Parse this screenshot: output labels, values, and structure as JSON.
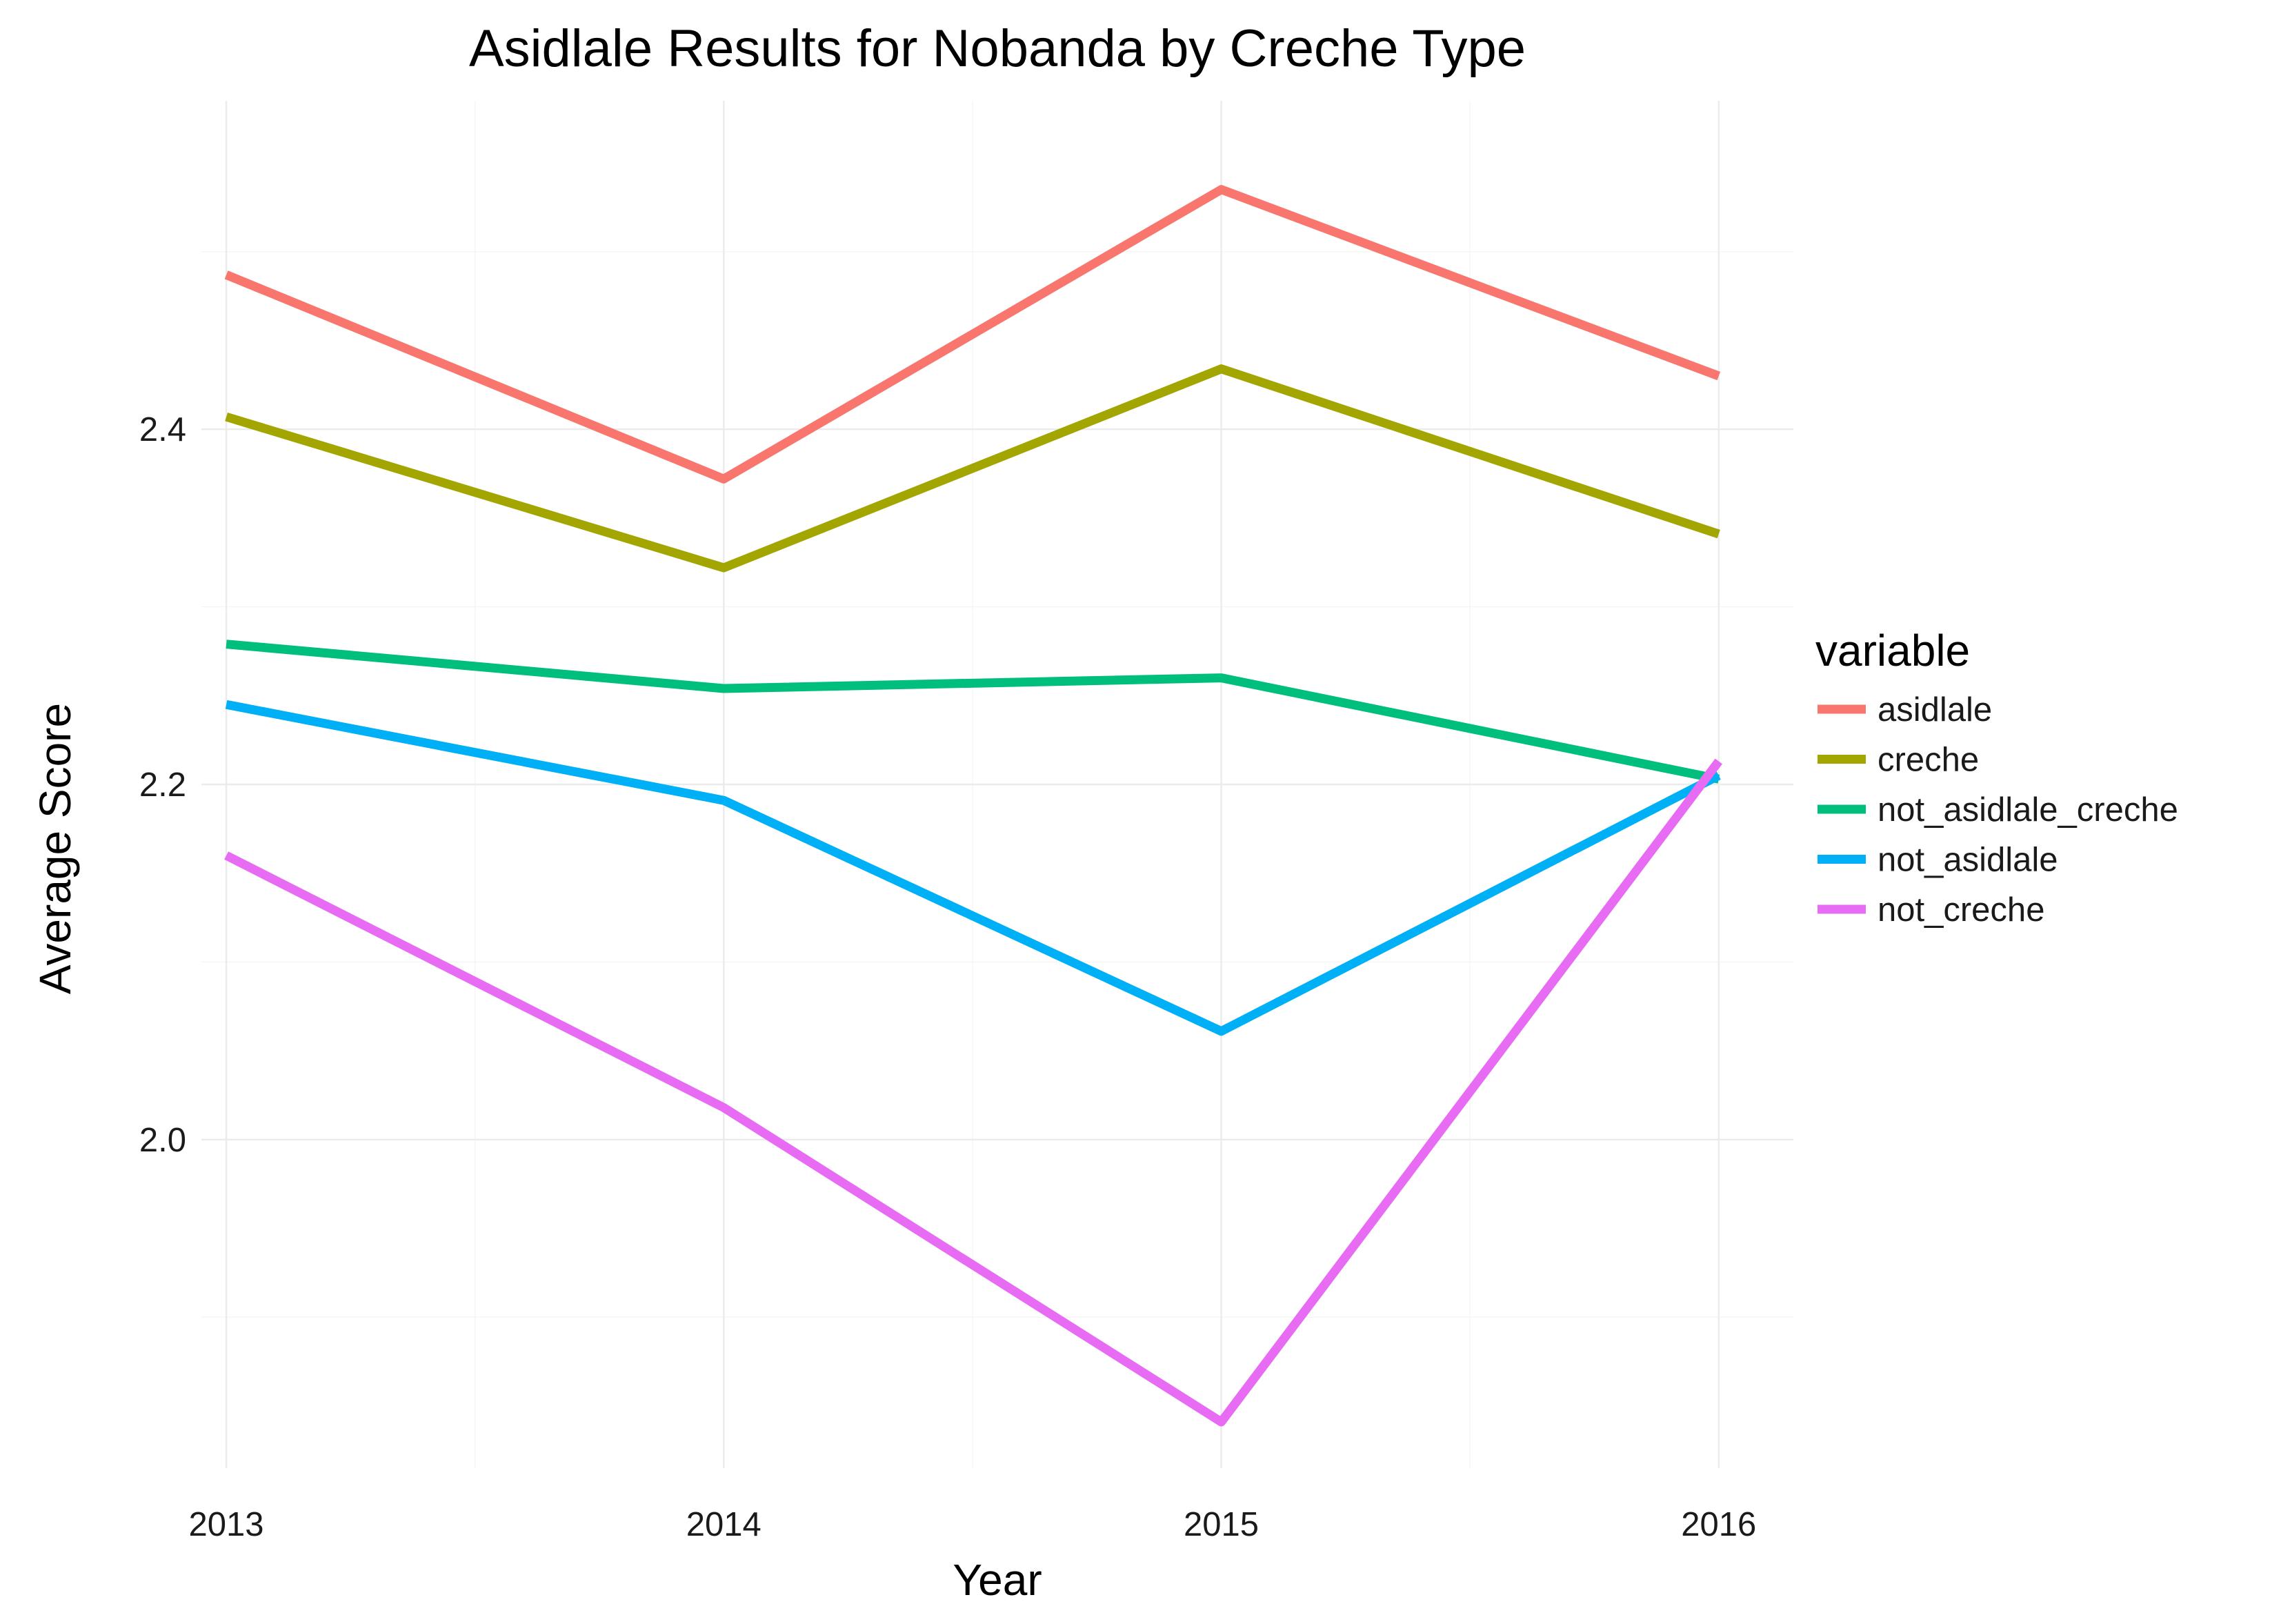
{
  "chart_data": {
    "type": "line",
    "title": "Asidlale Results for Nobanda by Creche Type",
    "xlabel": "Year",
    "ylabel": "Average Score",
    "x": [
      "2013",
      "2014",
      "2015",
      "2016"
    ],
    "xlim": [
      2012.95,
      2016.15
    ],
    "ylim": [
      1.815,
      2.585
    ],
    "y_major_ticks": [
      2.0,
      2.2,
      2.4
    ],
    "y_major_tick_labels": [
      "2.0",
      "2.2",
      "2.4"
    ],
    "y_minor_ticks": [
      1.9,
      2.1,
      2.3,
      2.5
    ],
    "x_minor_ticks": [
      2013.5,
      2014.5,
      2015.5
    ],
    "grid": true,
    "legend": {
      "title": "variable",
      "position": "right"
    },
    "series": [
      {
        "name": "asidlale",
        "color": "#F8766D",
        "values": [
          2.487,
          2.372,
          2.535,
          2.43
        ]
      },
      {
        "name": "creche",
        "color": "#A3A500",
        "values": [
          2.407,
          2.322,
          2.434,
          2.341
        ]
      },
      {
        "name": "not_asidlale_creche",
        "color": "#00BF7D",
        "values": [
          2.279,
          2.254,
          2.26,
          2.203
        ]
      },
      {
        "name": "not_asidlale",
        "color": "#00B0F6",
        "values": [
          2.245,
          2.191,
          2.061,
          2.205
        ]
      },
      {
        "name": "not_creche",
        "color": "#E76BF3",
        "values": [
          2.16,
          2.018,
          1.841,
          2.213
        ]
      }
    ]
  }
}
